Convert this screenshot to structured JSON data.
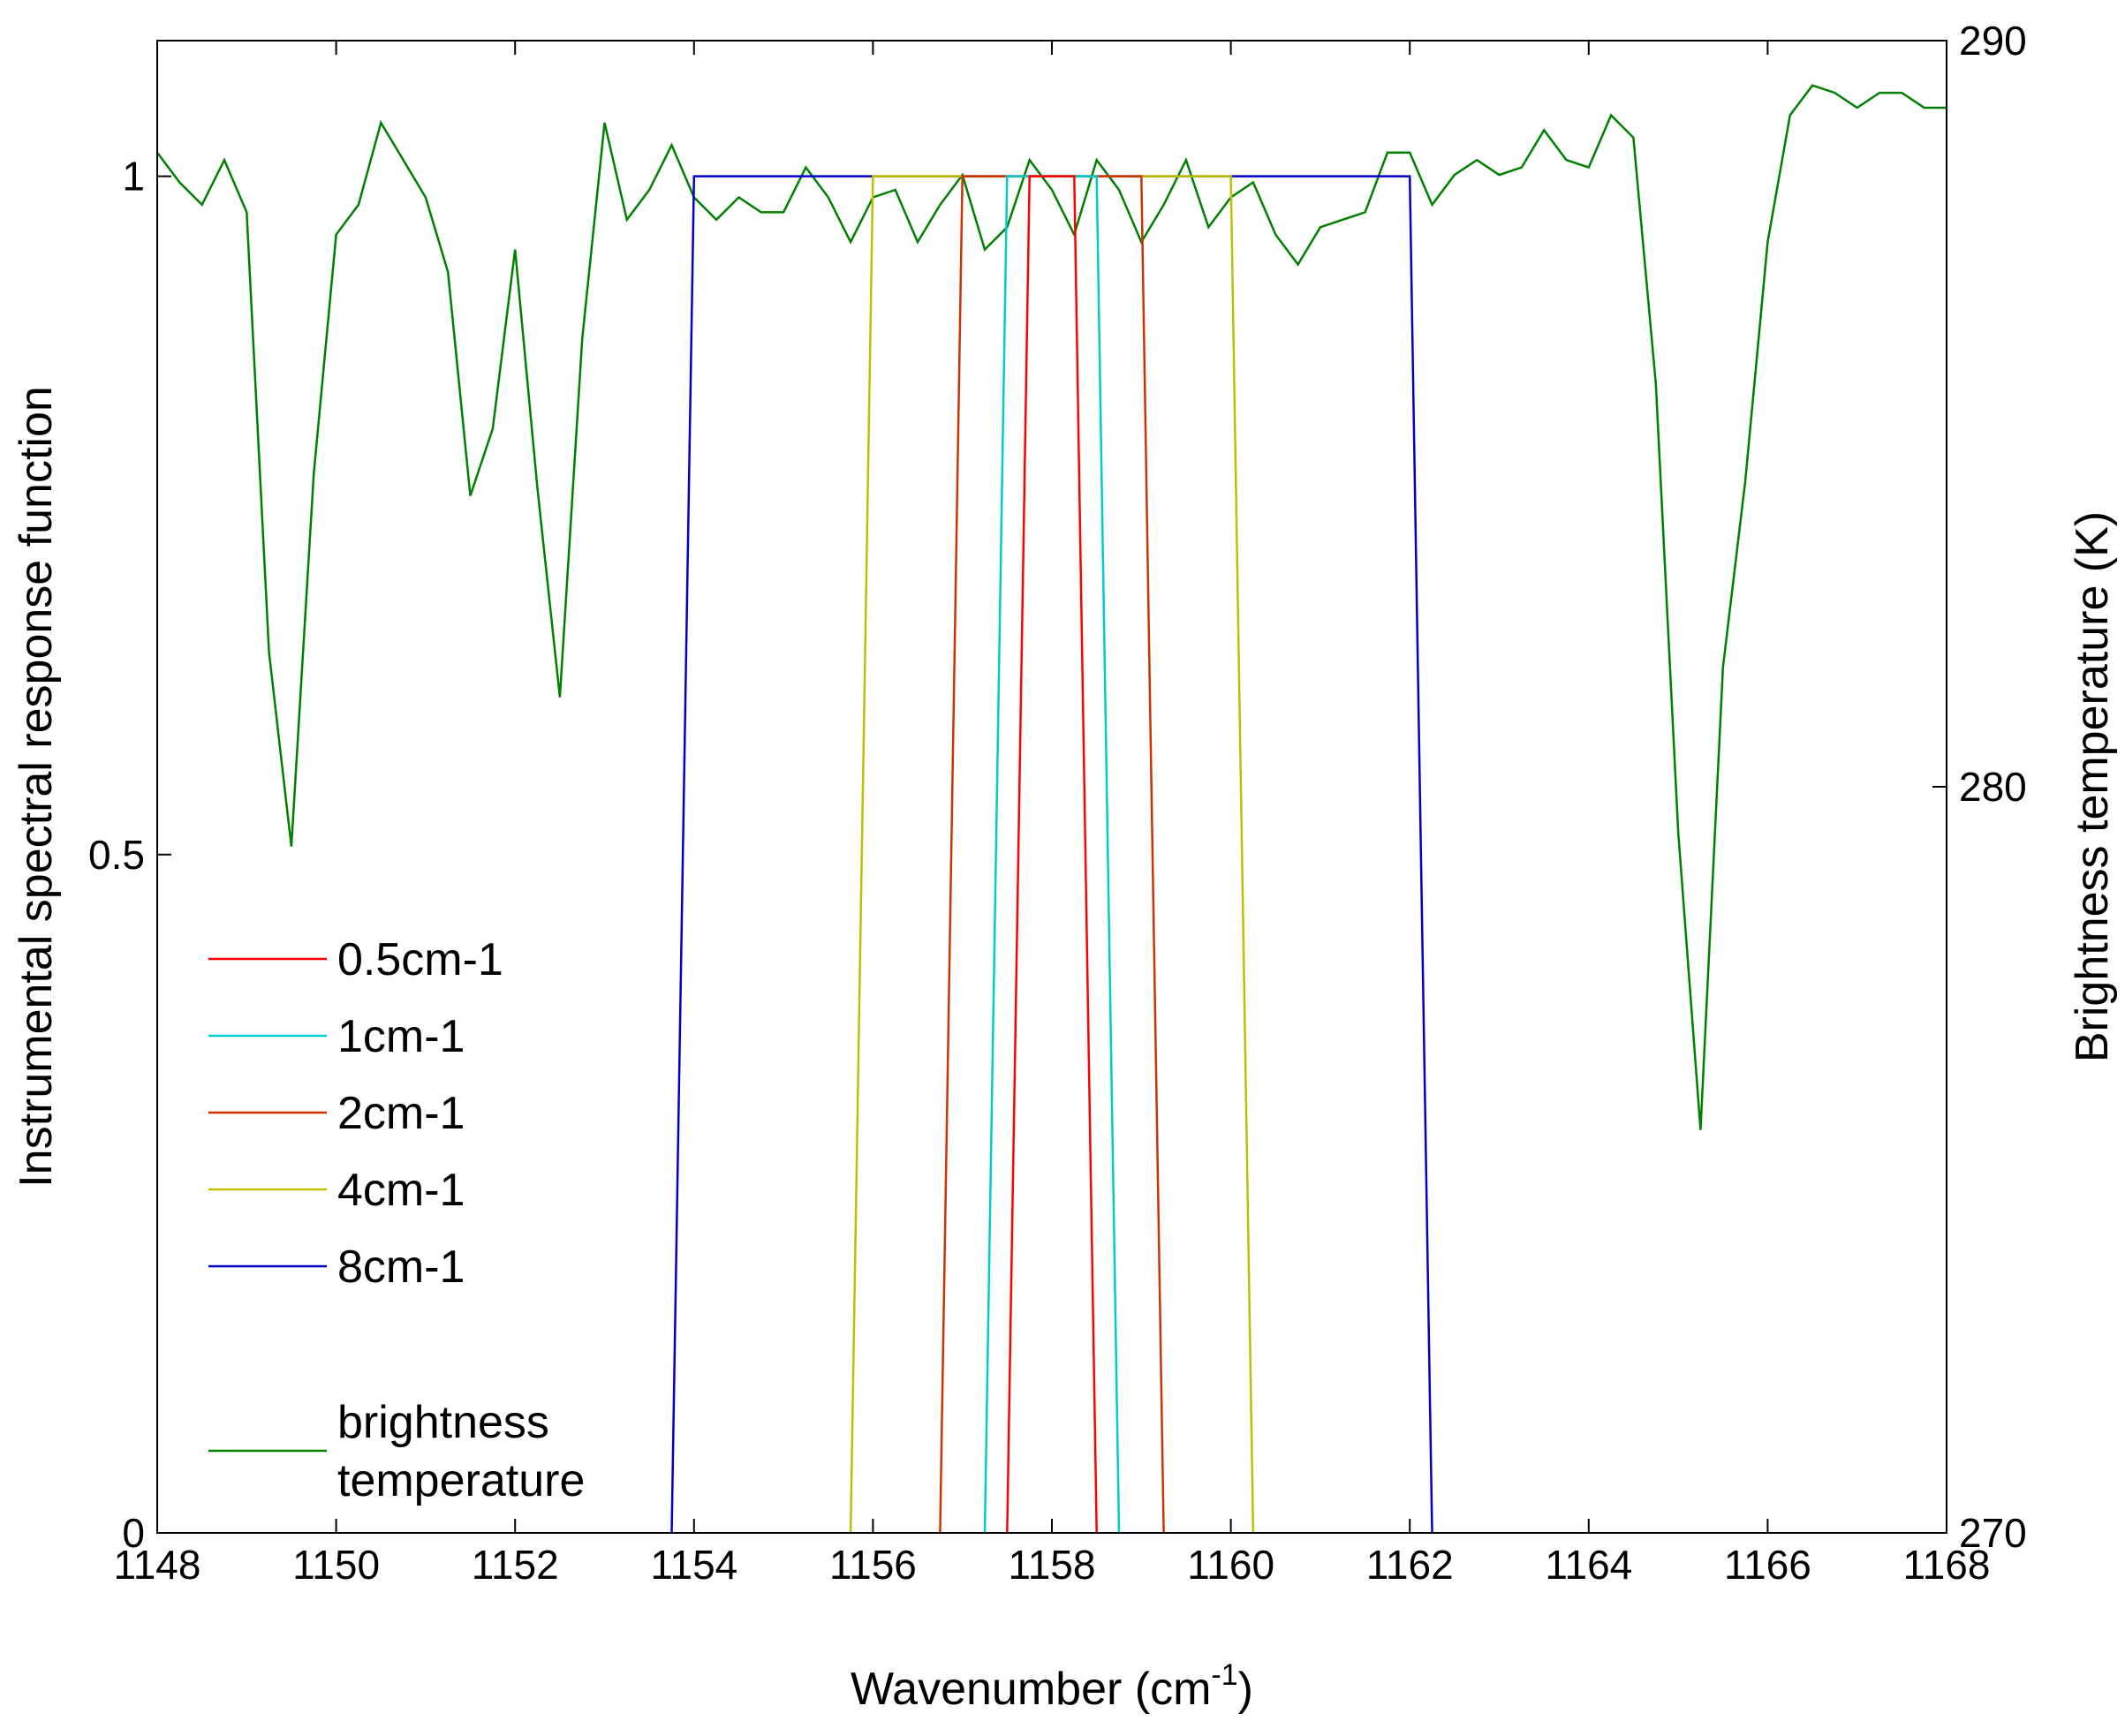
{
  "chart_data": {
    "type": "line",
    "title": "",
    "xlabel": "Wavenumber (cm",
    "xlabel_sup": "-1",
    "xlabel_end": ")",
    "ylabel_left": "Instrumental spectral response function",
    "ylabel_right": "Brightness temperature (K)",
    "xlim": [
      1148,
      1168
    ],
    "ylim_left": [
      0,
      1.1
    ],
    "ylim_right": [
      270,
      290
    ],
    "xticks": [
      1148,
      1150,
      1152,
      1154,
      1156,
      1158,
      1160,
      1162,
      1164,
      1166,
      1168
    ],
    "yticks_left": [
      0,
      0.5,
      1
    ],
    "yticks_left_labels": [
      "0",
      "0.5",
      "1"
    ],
    "yticks_right": [
      270,
      280,
      290
    ],
    "yticks_right_labels": [
      "270",
      "280",
      "290"
    ],
    "grid": false,
    "legend_position": "lower-left",
    "series": [
      {
        "name": "0.5cm-1",
        "axis": "left",
        "color": "#ff0000",
        "x": [
          1157.5,
          1157.75,
          1158.25,
          1158.5
        ],
        "y": [
          0,
          1,
          1,
          0
        ]
      },
      {
        "name": "1cm-1",
        "axis": "left",
        "color": "#00cccc",
        "x": [
          1157.25,
          1157.5,
          1158.5,
          1158.75
        ],
        "y": [
          0,
          1,
          1,
          0
        ]
      },
      {
        "name": "2cm-1",
        "axis": "left",
        "color": "#cc3300",
        "x": [
          1156.75,
          1157.0,
          1159.0,
          1159.25
        ],
        "y": [
          0,
          1,
          1,
          0
        ]
      },
      {
        "name": "4cm-1",
        "axis": "left",
        "color": "#bfbf00",
        "x": [
          1155.75,
          1156.0,
          1160.0,
          1160.25
        ],
        "y": [
          0,
          1,
          1,
          0
        ]
      },
      {
        "name": "8cm-1",
        "axis": "left",
        "color": "#0000cc",
        "x": [
          1153.75,
          1154.0,
          1162.0,
          1162.25
        ],
        "y": [
          0,
          1,
          1,
          0
        ]
      },
      {
        "name": "brightness temperature",
        "name_lines": [
          "brightness",
          "temperature"
        ],
        "axis": "right",
        "color": "#008000",
        "x": [
          1148.0,
          1148.25,
          1148.5,
          1148.75,
          1149.0,
          1149.25,
          1149.5,
          1149.75,
          1150.0,
          1150.25,
          1150.5,
          1150.75,
          1151.0,
          1151.25,
          1151.5,
          1151.75,
          1152.0,
          1152.25,
          1152.5,
          1152.75,
          1153.0,
          1153.25,
          1153.5,
          1153.75,
          1154.0,
          1154.25,
          1154.5,
          1154.75,
          1155.0,
          1155.25,
          1155.5,
          1155.75,
          1156.0,
          1156.25,
          1156.5,
          1156.75,
          1157.0,
          1157.25,
          1157.5,
          1157.75,
          1158.0,
          1158.25,
          1158.5,
          1158.75,
          1159.0,
          1159.25,
          1159.5,
          1159.75,
          1160.0,
          1160.25,
          1160.5,
          1160.75,
          1161.0,
          1161.25,
          1161.5,
          1161.75,
          1162.0,
          1162.25,
          1162.5,
          1162.75,
          1163.0,
          1163.25,
          1163.5,
          1163.75,
          1164.0,
          1164.25,
          1164.5,
          1164.75,
          1165.0,
          1165.25,
          1165.5,
          1165.75,
          1166.0,
          1166.25,
          1166.5,
          1166.75,
          1167.0,
          1167.25,
          1167.5,
          1167.75,
          1168.0
        ],
        "y": [
          288.5,
          288.1,
          287.8,
          288.4,
          287.7,
          281.8,
          279.2,
          284.2,
          287.4,
          287.8,
          288.9,
          288.4,
          287.9,
          286.9,
          283.9,
          284.8,
          287.2,
          284.0,
          281.2,
          286.0,
          288.9,
          287.6,
          288.0,
          288.6,
          287.9,
          287.6,
          287.9,
          287.7,
          287.7,
          288.3,
          287.9,
          287.3,
          287.9,
          288.0,
          287.3,
          287.8,
          288.2,
          287.2,
          287.5,
          288.4,
          288.0,
          287.4,
          288.4,
          288.0,
          287.3,
          287.8,
          288.4,
          287.5,
          287.9,
          288.1,
          287.4,
          287.0,
          287.5,
          287.6,
          287.7,
          288.5,
          288.5,
          287.8,
          288.2,
          288.4,
          288.2,
          288.3,
          288.8,
          288.4,
          288.3,
          289.0,
          288.7,
          285.4,
          279.4,
          275.4,
          281.6,
          284.1,
          287.3,
          289.0,
          289.4,
          289.3,
          289.1,
          289.3,
          289.3,
          289.1,
          289.1
        ]
      }
    ]
  }
}
